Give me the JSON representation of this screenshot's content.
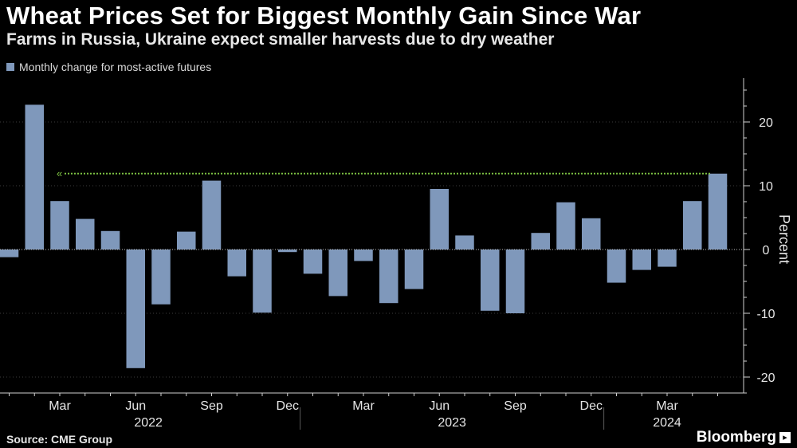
{
  "header": {
    "title": "Wheat Prices Set for Biggest Monthly Gain Since War",
    "subtitle": "Farms in Russia, Ukraine expect smaller harvests due to dry weather"
  },
  "footer": {
    "source": "Source: CME Group",
    "brand": "Bloomberg",
    "brand_mark": "▸"
  },
  "colors": {
    "bar": "#7f98bb",
    "reference_line": "#7cc142",
    "grid": "#3c3c3c",
    "axis": "#cfcfcf"
  },
  "chart_data": {
    "type": "bar",
    "title": "Wheat Prices Set for Biggest Monthly Gain Since War",
    "legend": [
      "Monthly change for most-active futures"
    ],
    "legend_position": "top-left",
    "ylabel": "Percent",
    "y_axis_position": "right",
    "ylim": [
      -23,
      26
    ],
    "yticks": [
      -20,
      -10,
      0,
      10,
      20
    ],
    "grid": true,
    "categories": [
      "Jan 2022",
      "Feb 2022",
      "Mar 2022",
      "Apr 2022",
      "May 2022",
      "Jun 2022",
      "Jul 2022",
      "Aug 2022",
      "Sep 2022",
      "Oct 2022",
      "Nov 2022",
      "Dec 2022",
      "Jan 2023",
      "Feb 2023",
      "Mar 2023",
      "Apr 2023",
      "May 2023",
      "Jun 2023",
      "Jul 2023",
      "Aug 2023",
      "Sep 2023",
      "Oct 2023",
      "Nov 2023",
      "Dec 2023",
      "Jan 2024",
      "Feb 2024",
      "Mar 2024",
      "Apr 2024",
      "May 2024"
    ],
    "values": [
      -1.2,
      22.7,
      7.6,
      4.8,
      2.9,
      -18.6,
      -8.6,
      2.8,
      10.8,
      -4.2,
      -9.9,
      -0.4,
      -3.8,
      -7.3,
      -1.8,
      -8.4,
      -6.2,
      9.5,
      2.2,
      -9.6,
      -10.0,
      2.6,
      7.4,
      4.9,
      -5.2,
      -3.2,
      -2.7,
      7.6,
      11.9
    ],
    "reference_line": {
      "value": 11.9,
      "from_category": "Mar 2022",
      "to_category": "May 2024",
      "style": "dotted",
      "marker": "«"
    },
    "x_month_labels": [
      {
        "label": "Mar",
        "category": "Mar 2022"
      },
      {
        "label": "Jun",
        "category": "Jun 2022"
      },
      {
        "label": "Sep",
        "category": "Sep 2022"
      },
      {
        "label": "Dec",
        "category": "Dec 2022"
      },
      {
        "label": "Mar",
        "category": "Mar 2023"
      },
      {
        "label": "Jun",
        "category": "Jun 2023"
      },
      {
        "label": "Sep",
        "category": "Sep 2023"
      },
      {
        "label": "Dec",
        "category": "Dec 2023"
      },
      {
        "label": "Mar",
        "category": "Mar 2024"
      }
    ],
    "x_year_labels": [
      {
        "label": "2022",
        "from": "Jan 2022",
        "to": "Dec 2022"
      },
      {
        "label": "2023",
        "from": "Jan 2023",
        "to": "Dec 2023"
      },
      {
        "label": "2024",
        "from": "Jan 2024",
        "to": "May 2024"
      }
    ]
  }
}
